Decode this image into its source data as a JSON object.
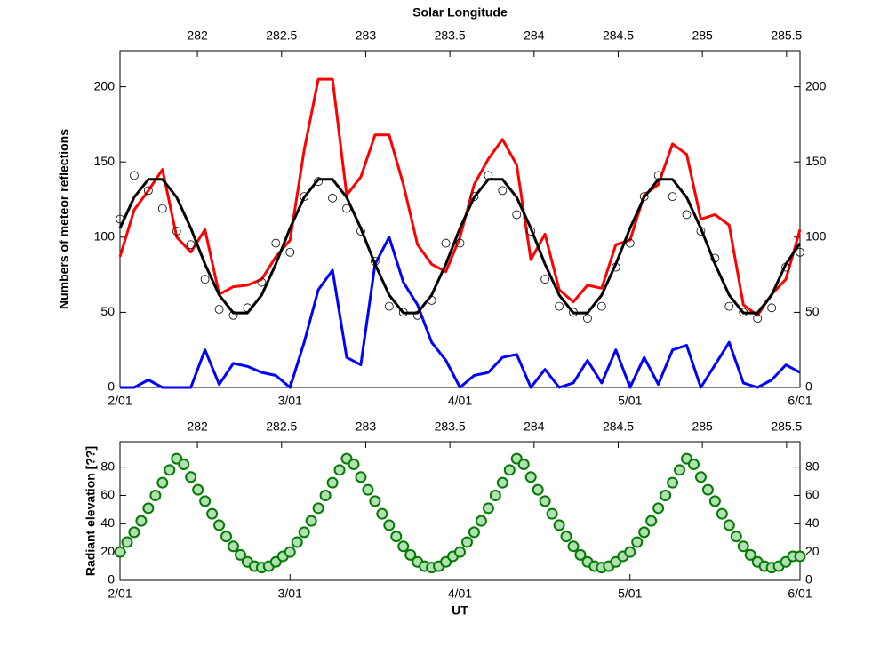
{
  "chart_data": [
    {
      "type": "line",
      "xlabel": "",
      "x2label": "Solar Longitude",
      "ylabel": "Numbers of meteor reflections",
      "x": [
        0,
        2,
        4,
        6,
        8,
        10,
        12,
        14,
        16,
        18,
        20,
        22,
        24,
        26,
        28,
        30,
        32,
        34,
        36,
        38,
        40,
        42,
        44,
        46,
        48,
        50,
        52,
        54,
        56,
        58,
        60,
        62,
        64,
        66,
        68,
        70,
        72,
        74,
        76,
        78,
        80,
        82,
        84,
        86,
        88,
        90,
        92,
        94,
        96
      ],
      "xlim": [
        0,
        96
      ],
      "xticks": [
        {
          "value": 0,
          "label": "2/01"
        },
        {
          "value": 24,
          "label": "3/01"
        },
        {
          "value": 48,
          "label": "4/01"
        },
        {
          "value": 72,
          "label": "5/01"
        },
        {
          "value": 96,
          "label": "6/01"
        }
      ],
      "x2lim": [
        281.54,
        285.58
      ],
      "x2ticks": [
        282,
        282.5,
        283,
        283.5,
        284,
        284.5,
        285,
        285.5
      ],
      "ylim": [
        0,
        224
      ],
      "yticks": [
        0,
        50,
        100,
        150,
        200
      ],
      "mirror_y": true,
      "series": [
        {
          "color": "#ff0000",
          "style": "line",
          "values": [
            87,
            118,
            131,
            145,
            100,
            90,
            105,
            62,
            67,
            68,
            72,
            87,
            98,
            158,
            205,
            205,
            128,
            140,
            168,
            168,
            135,
            95,
            82,
            77,
            100,
            135,
            152,
            165,
            148,
            85,
            102,
            65,
            57,
            68,
            66,
            95,
            98,
            128,
            135,
            162,
            155,
            112,
            115,
            108,
            55,
            48,
            62,
            72,
            105
          ]
        },
        {
          "color": "#0000ff",
          "style": "line",
          "values": [
            0,
            0,
            5,
            0,
            0,
            0,
            25,
            2,
            16,
            14,
            10,
            8,
            0,
            30,
            65,
            78,
            20,
            15,
            82,
            100,
            70,
            55,
            30,
            18,
            0,
            8,
            10,
            20,
            22,
            0,
            12,
            0,
            3,
            18,
            3,
            25,
            0,
            20,
            2,
            25,
            28,
            0,
            15,
            30,
            3,
            0,
            5,
            15,
            10
          ]
        },
        {
          "color": "#000000",
          "style": "markers",
          "values": [
            112,
            141,
            131,
            119,
            104,
            95,
            72,
            52,
            48,
            53,
            70,
            96,
            90,
            127,
            137,
            126,
            119,
            104,
            84,
            54,
            50,
            48,
            58,
            96,
            96,
            127,
            141,
            131,
            115,
            104,
            72,
            54,
            50,
            46,
            54,
            80,
            96,
            127,
            141,
            127,
            115,
            104,
            86,
            54,
            50,
            46,
            53,
            80,
            90
          ]
        },
        {
          "color": "#000000",
          "style": "line",
          "values": [
            106,
            126.5,
            138.4,
            138.4,
            126.5,
            105.9,
            82.1,
            61.5,
            49.6,
            49.6,
            61.5,
            82.1,
            106,
            126.5,
            138.4,
            138.4,
            126.5,
            105.9,
            82.1,
            61.5,
            49.6,
            49.6,
            61.5,
            82.1,
            106,
            126.5,
            138.4,
            138.4,
            126.5,
            105.9,
            82.1,
            61.5,
            49.6,
            49.6,
            61.5,
            82.1,
            106,
            126.5,
            138.4,
            138.4,
            126.5,
            105.9,
            82.1,
            61.5,
            49.6,
            49.6,
            61.5,
            82.1,
            96
          ]
        }
      ]
    },
    {
      "type": "scatter",
      "xlabel": "UT",
      "ylabel": "Radiant elevation [??]",
      "x": [
        0,
        1,
        2,
        3,
        4,
        5,
        6,
        7,
        8,
        9,
        10,
        11,
        12,
        13,
        14,
        15,
        16,
        17,
        18,
        19,
        20,
        21,
        22,
        23,
        24,
        25,
        26,
        27,
        28,
        29,
        30,
        31,
        32,
        33,
        34,
        35,
        36,
        37,
        38,
        39,
        40,
        41,
        42,
        43,
        44,
        45,
        46,
        47,
        48,
        49,
        50,
        51,
        52,
        53,
        54,
        55,
        56,
        57,
        58,
        59,
        60,
        61,
        62,
        63,
        64,
        65,
        66,
        67,
        68,
        69,
        70,
        71,
        72,
        73,
        74,
        75,
        76,
        77,
        78,
        79,
        80,
        81,
        82,
        83,
        84,
        85,
        86,
        87,
        88,
        89,
        90,
        91,
        92,
        93,
        94,
        95,
        96
      ],
      "xlim": [
        0,
        96
      ],
      "xticks": [
        {
          "value": 0,
          "label": "2/01"
        },
        {
          "value": 24,
          "label": "3/01"
        },
        {
          "value": 48,
          "label": "4/01"
        },
        {
          "value": 72,
          "label": "5/01"
        },
        {
          "value": 96,
          "label": "6/01"
        }
      ],
      "x2lim": [
        281.54,
        285.58
      ],
      "x2ticks": [
        282,
        282.5,
        283,
        283.5,
        284,
        284.5,
        285,
        285.5
      ],
      "ylim": [
        0,
        98
      ],
      "yticks": [
        0,
        20,
        40,
        60,
        80
      ],
      "mirror_y": true,
      "series": [
        {
          "color": "#007a00",
          "fill": "#b3e0b3",
          "style": "markers",
          "values": [
            20,
            27,
            34,
            42,
            51,
            60,
            69,
            78,
            86,
            82,
            73,
            64,
            56,
            47,
            39,
            31,
            24,
            18,
            13,
            10,
            9,
            10,
            13,
            17,
            20,
            27,
            34,
            42,
            51,
            60,
            69,
            78,
            86,
            82,
            73,
            64,
            56,
            47,
            39,
            31,
            24,
            18,
            13,
            10,
            9,
            10,
            13,
            17,
            20,
            27,
            34,
            42,
            51,
            60,
            69,
            78,
            86,
            82,
            73,
            64,
            56,
            47,
            39,
            31,
            24,
            18,
            13,
            10,
            9,
            10,
            13,
            17,
            20,
            27,
            34,
            42,
            51,
            60,
            69,
            78,
            86,
            82,
            73,
            64,
            56,
            47,
            39,
            31,
            24,
            18,
            13,
            10,
            9,
            10,
            13,
            17,
            17
          ]
        }
      ]
    }
  ]
}
